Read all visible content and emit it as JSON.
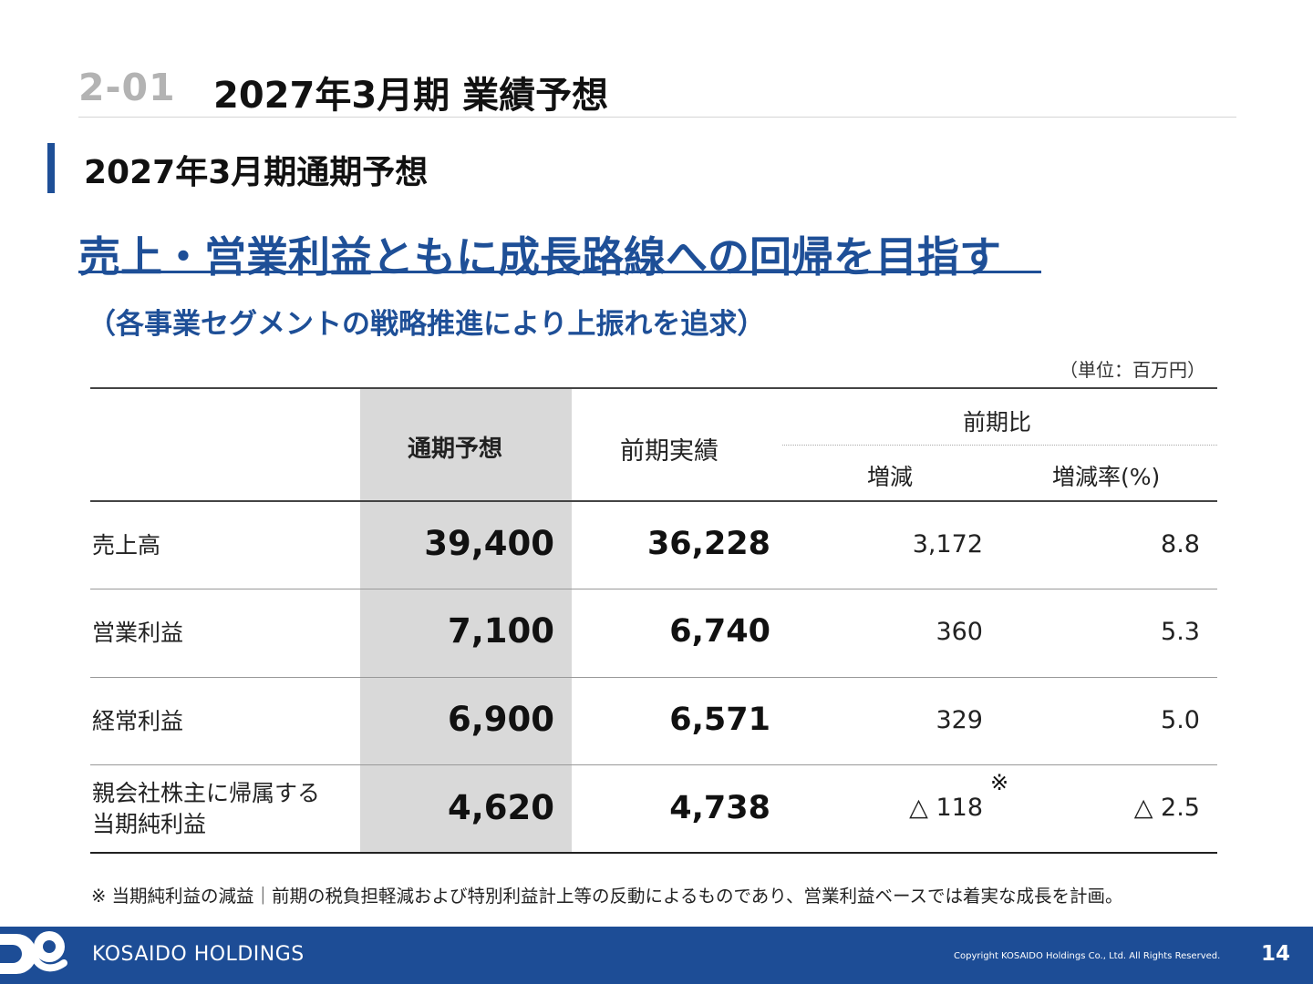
{
  "header": {
    "section_number": "2-01",
    "title": "2027年3月期 業績予想"
  },
  "section": {
    "title": "2027年3月期通期予想"
  },
  "headline": "売上・営業利益ともに成長路線への回帰を目指す",
  "subheadline": "（各事業セグメントの戦略推進により上振れを追求）",
  "unit_note": "（単位：百万円）",
  "table": {
    "col_forecast": "通期予想",
    "col_previous": "前期実績",
    "col_comparison": "前期比",
    "col_change": "増減",
    "col_change_rate": "増減率(%)",
    "rows": [
      {
        "label": "売上高",
        "forecast": "39,400",
        "previous": "36,228",
        "change": "3,172",
        "rate": "8.8"
      },
      {
        "label": "営業利益",
        "forecast": "7,100",
        "previous": "6,740",
        "change": "360",
        "rate": "5.3"
      },
      {
        "label": "経常利益",
        "forecast": "6,900",
        "previous": "6,571",
        "change": "329",
        "rate": "5.0"
      },
      {
        "label_line1": "親会社株主に帰属する",
        "label_line2": "当期純利益",
        "forecast": "4,620",
        "previous": "4,738",
        "change": "△ 118",
        "rate": "△ 2.5",
        "mark": "※"
      }
    ]
  },
  "footnote": "※ 当期純利益の減益｜前期の税負担軽減および特別利益計上等の反動によるものであり、営業利益ベースでは着実な成長を計画。",
  "footer": {
    "company": "KOSAIDO HOLDINGS",
    "copyright": "Copyright  KOSAIDO Holdings Co., Ltd. All Rights Reserved.",
    "page_number": "14"
  },
  "colors": {
    "brand_blue": "#1e4f97",
    "forecast_column": "#d9d9d9",
    "header_number_gray": "#b3b3b3"
  }
}
